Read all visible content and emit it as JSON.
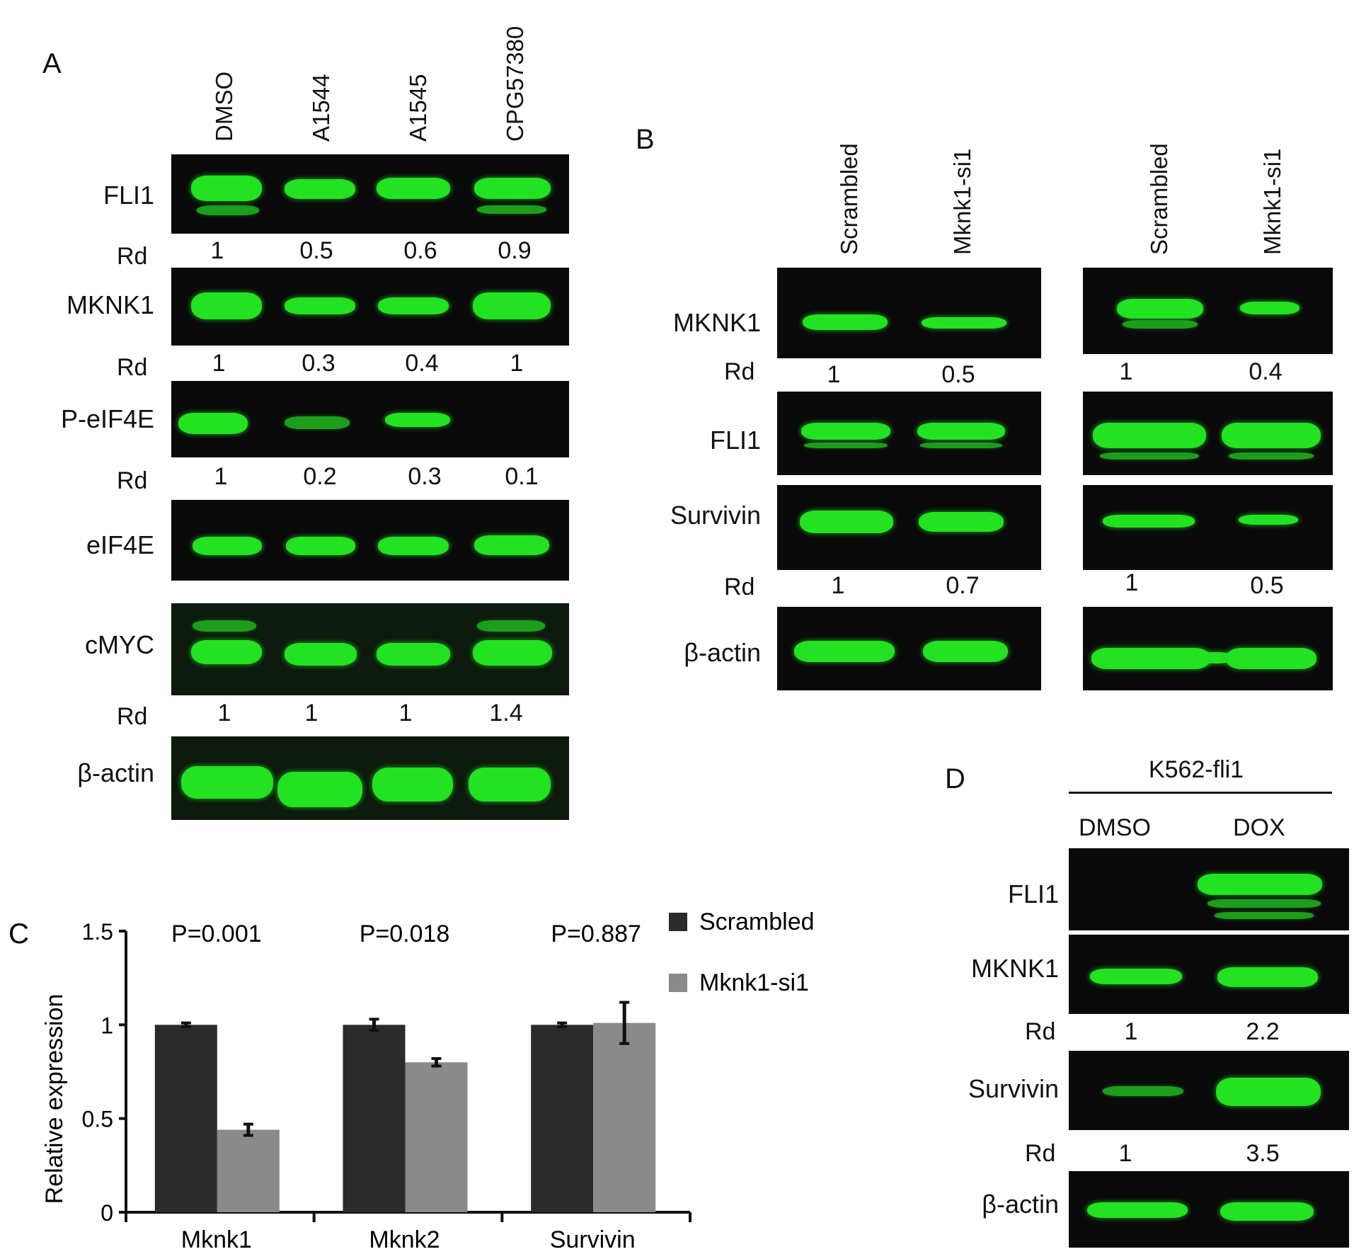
{
  "panelA": {
    "letter": "A",
    "lanes": [
      "DMSO",
      "A1544",
      "A1545",
      "CPG57380"
    ],
    "rows": [
      {
        "label": "FLI1"
      },
      {
        "rd": [
          "1",
          "0.5",
          "0.6",
          "0.9"
        ]
      },
      {
        "label": "MKNK1"
      },
      {
        "rd": [
          "1",
          "0.3",
          "0.4",
          "1"
        ]
      },
      {
        "label": "P-eIF4E"
      },
      {
        "rd": [
          "1",
          "0.2",
          "0.3",
          "0.1"
        ]
      },
      {
        "label": "eIF4E"
      },
      {
        "label": "cMYC"
      },
      {
        "rd": [
          "1",
          "1",
          "1",
          "1.4"
        ]
      },
      {
        "label": "β-actin"
      }
    ],
    "rd_label": "Rd"
  },
  "panelB": {
    "letter": "B",
    "lanes_left": [
      "Scrambled",
      "Mknk1-si1"
    ],
    "lanes_right": [
      "Scrambled",
      "Mknk1-si1"
    ],
    "labels": [
      "MKNK1",
      "FLI1",
      "Survivin",
      "β-actin"
    ],
    "rd_label": "Rd",
    "rd_mknk1_left": [
      "1",
      "0.5"
    ],
    "rd_mknk1_right": [
      "1",
      "0.4"
    ],
    "rd_survivin_left": [
      "1",
      "0.7"
    ],
    "rd_survivin_right": [
      "1",
      "0.5"
    ]
  },
  "panelD": {
    "letter": "D",
    "header": "K562-fli1",
    "lanes": [
      "DMSO",
      "DOX"
    ],
    "labels": [
      "FLI1",
      "MKNK1",
      "Survivin",
      "β-actin"
    ],
    "rd_label": "Rd",
    "rd_mknk1": [
      "1",
      "2.2"
    ],
    "rd_survivin": [
      "1",
      "3.5"
    ]
  },
  "chart_data": {
    "letter": "C",
    "type": "bar",
    "categories": [
      "Mknk1",
      "Mknk2",
      "Survivin"
    ],
    "series": [
      {
        "name": "Scrambled",
        "values": [
          1.0,
          1.0,
          1.0
        ],
        "errors": [
          0.01,
          0.03,
          0.01
        ],
        "color": "#2b2b2b"
      },
      {
        "name": "Mknk1-si1",
        "values": [
          0.44,
          0.8,
          1.01
        ],
        "errors": [
          0.03,
          0.02,
          0.11
        ],
        "color": "#8a8a8a"
      }
    ],
    "annotations": [
      "P=0.001",
      "P=0.018",
      "P=0.887"
    ],
    "ylabel": "Relative expression",
    "xlabel": "",
    "ylim": [
      0,
      1.5
    ],
    "yticks": [
      "0",
      "0.5",
      "1",
      "1.5"
    ],
    "legend_position": "top-right"
  }
}
